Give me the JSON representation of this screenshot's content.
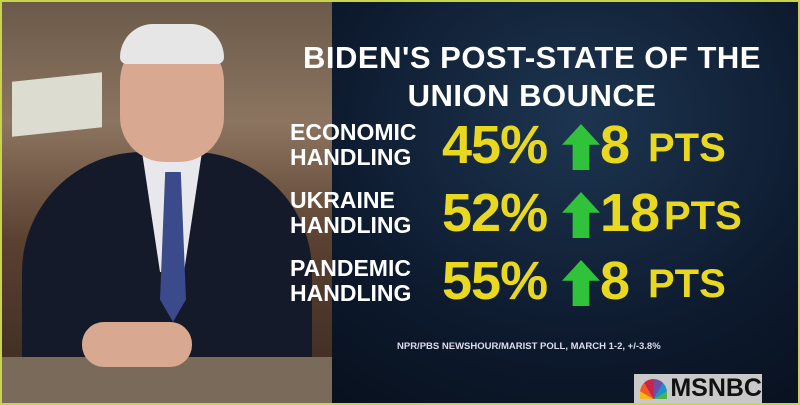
{
  "title_lines": [
    "BIDEN'S POST-STATE OF THE",
    "UNION BOUNCE"
  ],
  "rows": [
    {
      "label_lines": [
        "ECONOMIC",
        "HANDLING"
      ],
      "approval": "45%",
      "change": "8",
      "unit": "PTS",
      "direction": "up"
    },
    {
      "label_lines": [
        "UKRAINE",
        "HANDLING"
      ],
      "approval": "52%",
      "change": "18",
      "unit": "PTS",
      "direction": "up"
    },
    {
      "label_lines": [
        "PANDEMIC",
        "HANDLING"
      ],
      "approval": "55%",
      "change": "8",
      "unit": "PTS",
      "direction": "up"
    }
  ],
  "source": "NPR/PBS NEWSHOUR/MARIST POLL, MARCH 1-2, +/-3.8%",
  "network_logo": "MSNBC",
  "colors": {
    "value": "#e8d920",
    "arrow": "#2fc23a",
    "panel": "#0d1a2e",
    "border": "#c8d44a"
  }
}
